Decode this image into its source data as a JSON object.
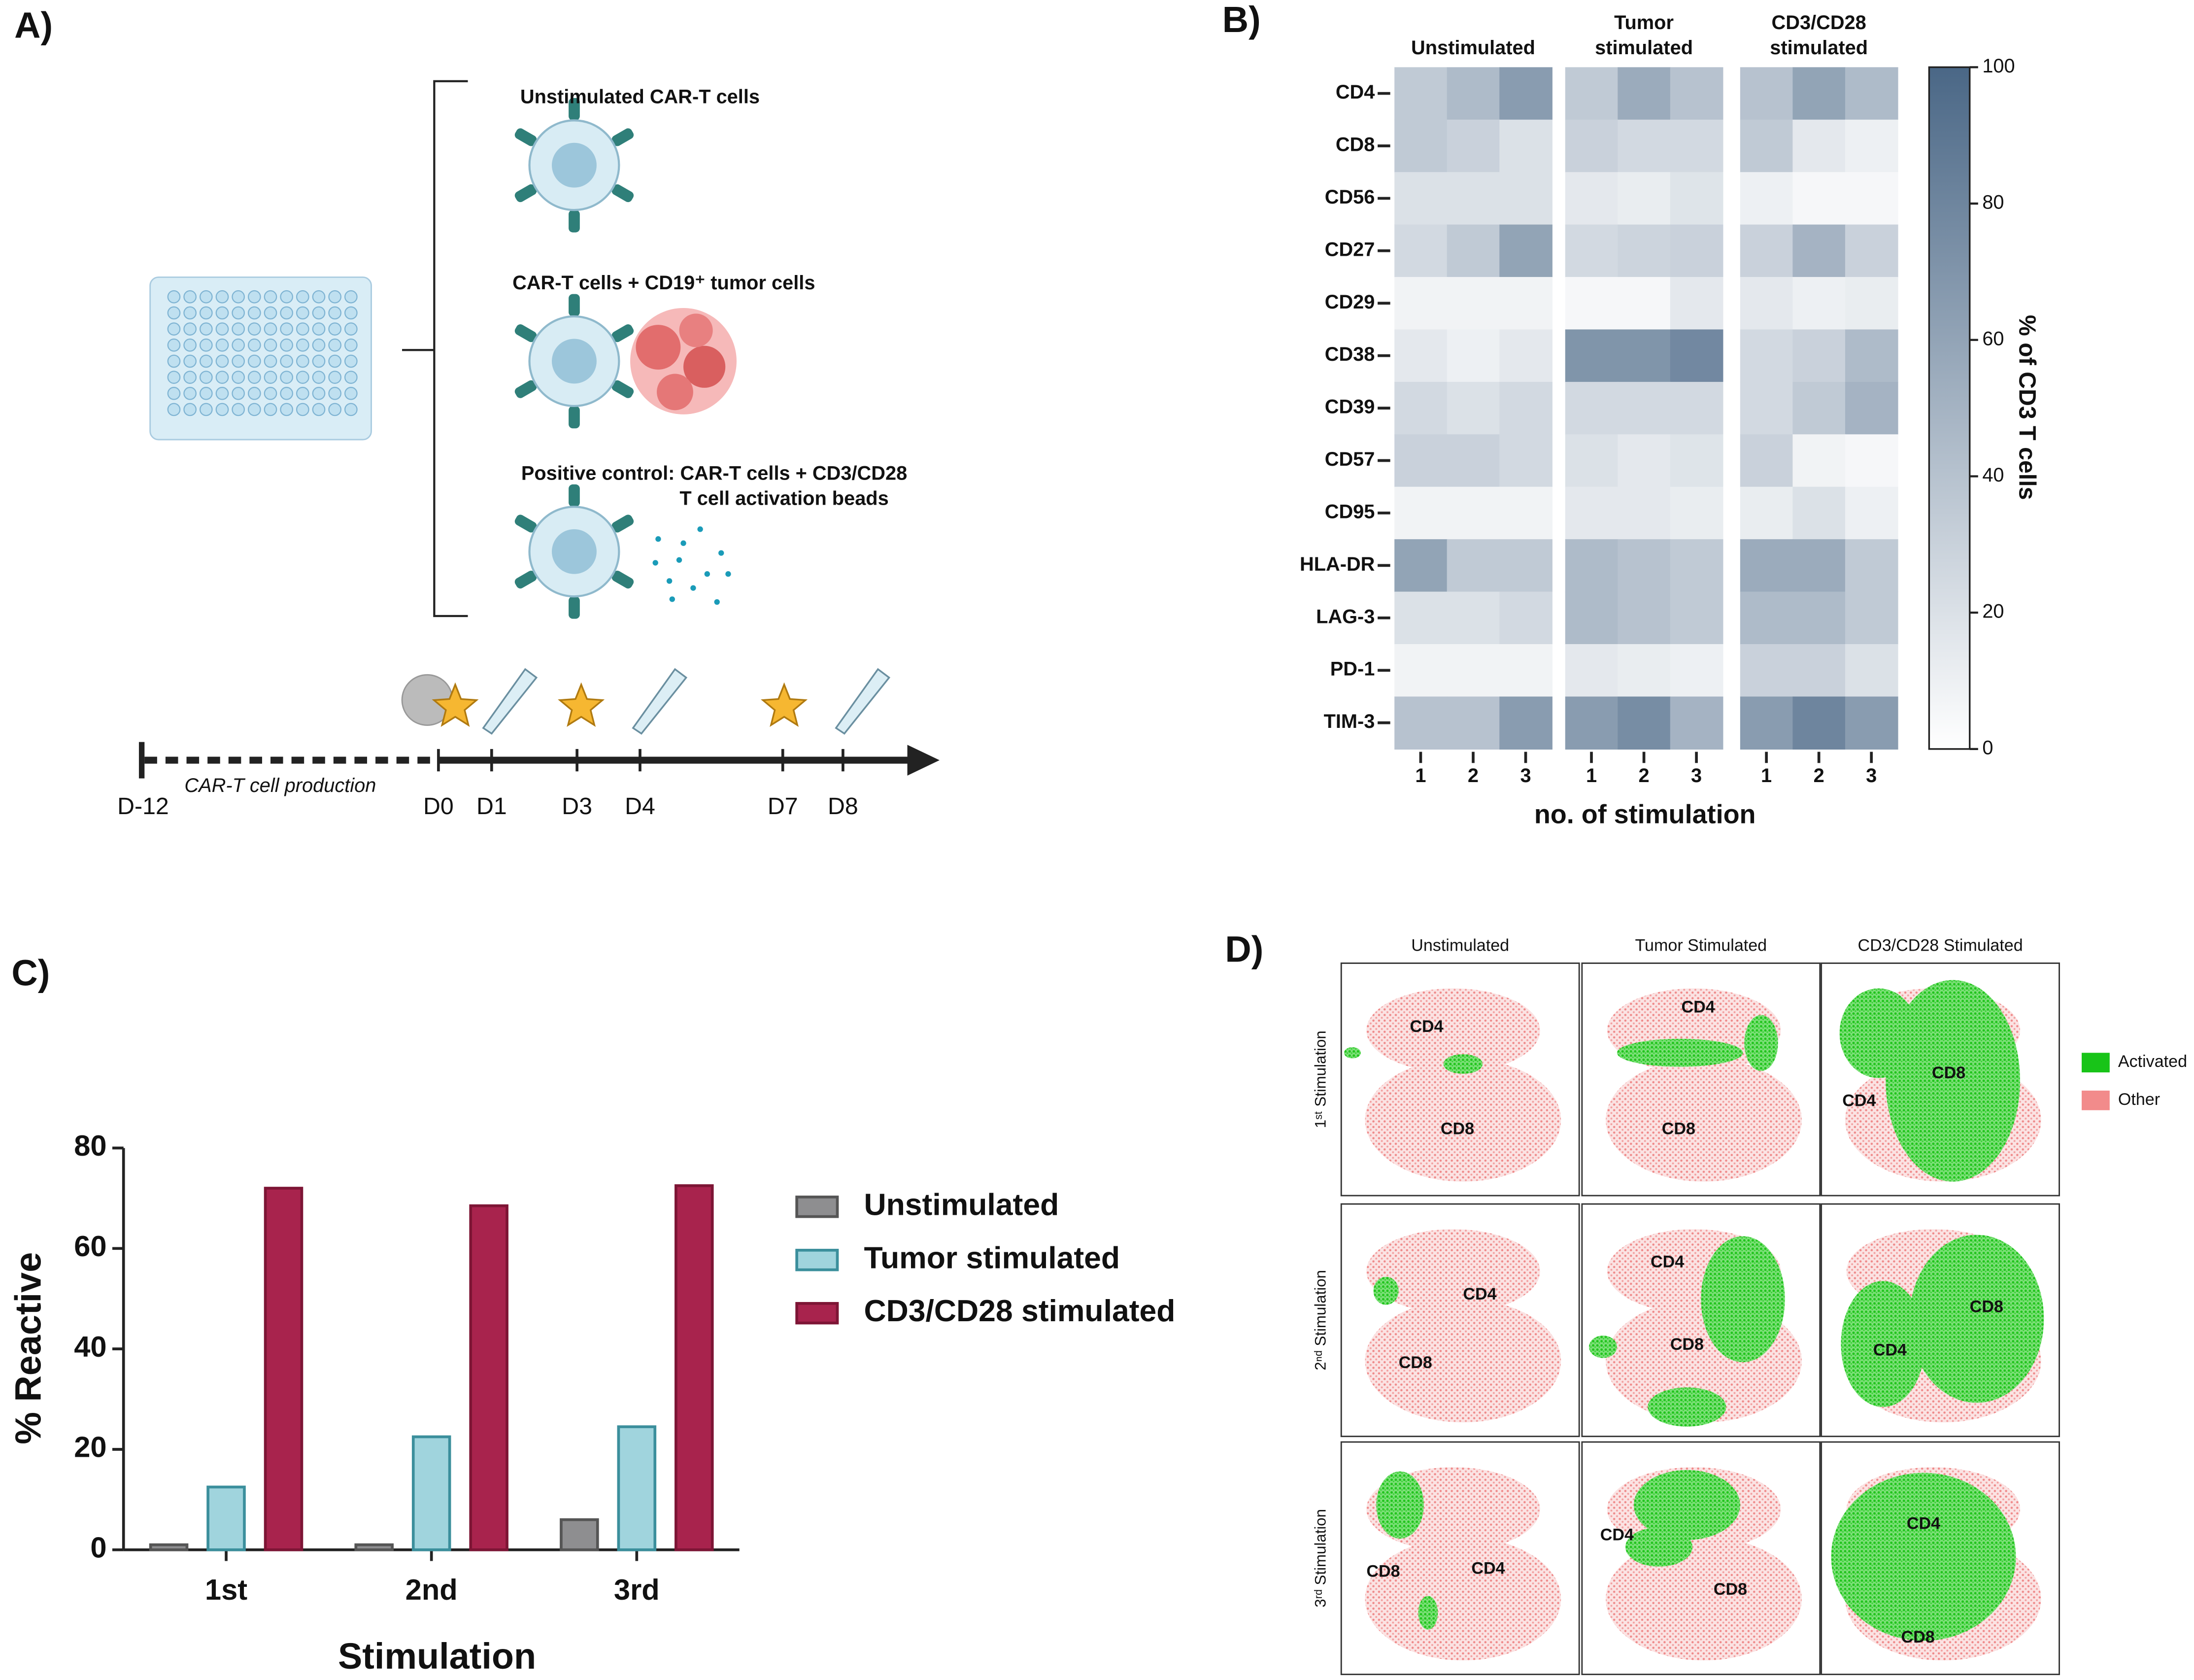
{
  "diagram": {
    "panel": "A)",
    "conditions": [
      "Unstimulated CAR-T cells",
      "CAR-T cells + CD19⁺ tumor cells",
      "Positive control: CAR-T cells + CD3/CD28",
      "T cell activation beads"
    ],
    "timeline_label": "CAR-T cell production",
    "days": [
      "D-12",
      "D0",
      "D1",
      "D3",
      "D4",
      "D7",
      "D8"
    ]
  },
  "chart_data": [
    {
      "type": "heatmap",
      "panel": "B)",
      "rows": [
        "CD4",
        "CD8",
        "CD56",
        "CD27",
        "CD29",
        "CD38",
        "CD39",
        "CD57",
        "CD95",
        "HLA-DR",
        "LAG-3",
        "PD-1",
        "TIM-3"
      ],
      "groups": [
        {
          "name": [
            "Unstimulated"
          ],
          "columns": [
            "1",
            "2",
            "3"
          ],
          "values": [
            [
              35,
              45,
              65
            ],
            [
              35,
              30,
              20
            ],
            [
              20,
              20,
              20
            ],
            [
              25,
              35,
              60
            ],
            [
              8,
              8,
              8
            ],
            [
              15,
              10,
              15
            ],
            [
              25,
              20,
              25
            ],
            [
              30,
              30,
              25
            ],
            [
              8,
              8,
              8
            ],
            [
              60,
              35,
              35
            ],
            [
              20,
              20,
              25
            ],
            [
              8,
              8,
              8
            ],
            [
              40,
              40,
              65
            ]
          ]
        },
        {
          "name": [
            "Tumor",
            "stimulated"
          ],
          "columns": [
            "1",
            "2",
            "3"
          ],
          "values": [
            [
              35,
              55,
              40
            ],
            [
              30,
              25,
              25
            ],
            [
              15,
              12,
              18
            ],
            [
              25,
              28,
              30
            ],
            [
              5,
              5,
              15
            ],
            [
              70,
              70,
              78
            ],
            [
              25,
              25,
              25
            ],
            [
              20,
              15,
              18
            ],
            [
              15,
              15,
              12
            ],
            [
              45,
              40,
              35
            ],
            [
              45,
              40,
              35
            ],
            [
              15,
              12,
              10
            ],
            [
              65,
              75,
              50
            ]
          ]
        },
        {
          "name": [
            "CD3/CD28",
            "stimulated"
          ],
          "columns": [
            "1",
            "2",
            "3"
          ],
          "values": [
            [
              40,
              60,
              45
            ],
            [
              35,
              15,
              10
            ],
            [
              10,
              5,
              5
            ],
            [
              30,
              50,
              30
            ],
            [
              15,
              10,
              12
            ],
            [
              25,
              30,
              45
            ],
            [
              25,
              35,
              50
            ],
            [
              30,
              8,
              5
            ],
            [
              12,
              20,
              10
            ],
            [
              55,
              55,
              35
            ],
            [
              45,
              45,
              35
            ],
            [
              30,
              30,
              20
            ],
            [
              65,
              80,
              65
            ]
          ]
        }
      ],
      "xlabel": "no. of stimulation",
      "colorbar_label": "% of CD3 T cells",
      "zlim": [
        0,
        100
      ],
      "zticks": [
        0,
        20,
        40,
        60,
        80,
        100
      ],
      "colors": [
        "#ffffff",
        "#4a6786"
      ]
    },
    {
      "type": "bar",
      "panel": "C)",
      "categories": [
        "1st",
        "2nd",
        "3rd"
      ],
      "series": [
        {
          "name": "Unstimulated",
          "color": "#8e8e90",
          "edge_color": "#555555",
          "values": [
            1,
            1,
            6
          ]
        },
        {
          "name": "Tumor stimulated",
          "color": "#a0d4dd",
          "edge_color": "#3b8f9c",
          "values": [
            12.5,
            22.5,
            24.5
          ]
        },
        {
          "name": "CD3/CD28 stimulated",
          "color": "#a8234d",
          "edge_color": "#7d1535",
          "values": [
            72,
            68.5,
            72.5
          ]
        }
      ],
      "ylabel": "% Reactive",
      "xlabel": "Stimulation",
      "ylim": [
        0,
        80
      ],
      "yticks": [
        0,
        20,
        40,
        60,
        80
      ]
    }
  ],
  "tsne": {
    "panel": "D)",
    "columns": [
      "Unstimulated",
      "Tumor Stimulated",
      "CD3/CD28 Stimulated"
    ],
    "rows": [
      "1ˢᵗ Stimulation",
      "2ⁿᵈ Stimulation",
      "3ʳᵈ Stimulation"
    ],
    "cells": [
      [
        [
          "CD4",
          "CD8"
        ],
        [
          "CD4",
          "CD8"
        ],
        [
          "CD8",
          "CD4"
        ]
      ],
      [
        [
          "CD4",
          "CD8"
        ],
        [
          "CD4",
          "CD8"
        ],
        [
          "CD8",
          "CD4"
        ]
      ],
      [
        [
          "CD8",
          "CD4"
        ],
        [
          "CD4",
          "CD8"
        ],
        [
          "CD4",
          "CD8"
        ]
      ]
    ],
    "legend": [
      "Activated",
      "Other"
    ]
  }
}
